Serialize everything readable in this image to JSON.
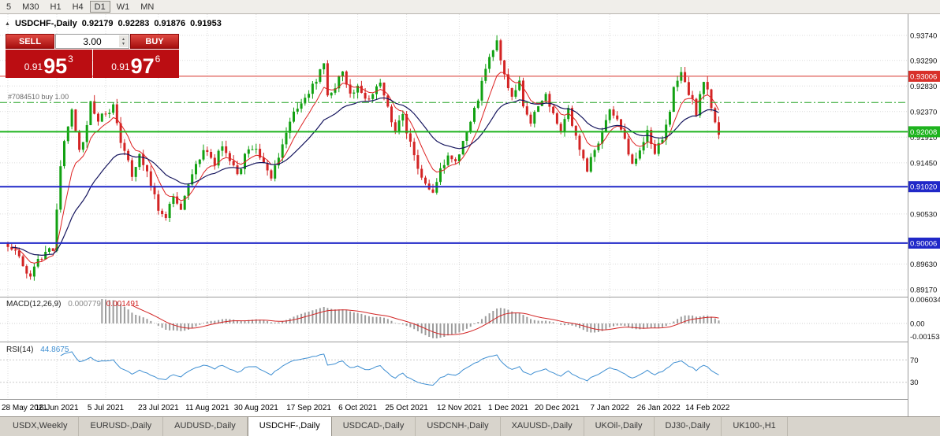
{
  "toolbar": {
    "timeframes": [
      "5",
      "M30",
      "H1",
      "H4",
      "D1",
      "W1",
      "MN"
    ],
    "active_timeframe": "D1"
  },
  "chart_header": {
    "collapse_icon": "▲",
    "symbol_title": "USDCHF-,Daily",
    "open": "0.92179",
    "high": "0.92283",
    "low": "0.91876",
    "close": "0.91953"
  },
  "one_click_trading": {
    "sell_label": "SELL",
    "buy_label": "BUY",
    "volume": "3.00",
    "spinner_up_icon": "▲",
    "spinner_down_icon": "▼",
    "sell_price_prefix": "0.91",
    "sell_price_big": "95",
    "sell_price_sup": "3",
    "buy_price_prefix": "0.91",
    "buy_price_big": "97",
    "buy_price_sup": "6",
    "panel_color": "#bb0d12"
  },
  "position_line": {
    "label": "#7084510 buy 1.00",
    "price": 0.92535,
    "color": "#1fa11f"
  },
  "price_axis": {
    "labels": [
      {
        "text": "0.93740",
        "price": 0.9374
      },
      {
        "text": "0.93290",
        "price": 0.9329
      },
      {
        "text": "0.92830",
        "price": 0.9283
      },
      {
        "text": "0.92370",
        "price": 0.9237
      },
      {
        "text": "0.91910",
        "price": 0.9191
      },
      {
        "text": "0.91450",
        "price": 0.9145
      },
      {
        "text": "0.90530",
        "price": 0.9053
      },
      {
        "text": "0.89630",
        "price": 0.8963
      },
      {
        "text": "0.89170",
        "price": 0.8917
      }
    ],
    "badges": [
      {
        "text": "0.93006",
        "price": 0.93006,
        "color": "#d8302a",
        "line_width": 1
      },
      {
        "text": "0.92008",
        "price": 0.92008,
        "color": "#1db31d",
        "line_width": 2
      },
      {
        "text": "0.91020",
        "price": 0.9102,
        "color": "#2028c8",
        "line_width": 2
      },
      {
        "text": "0.90006",
        "price": 0.90006,
        "color": "#2028c8",
        "line_width": 2
      }
    ]
  },
  "macd_panel": {
    "name": "MACD(12,26,9)",
    "value_main": "0.000779",
    "value_signal": "0.001491",
    "axis_top": "0.006034",
    "axis_zero": "0.00",
    "axis_bottom": "-0.001534",
    "histogram_color": "#9c9c9c",
    "signal_color": "#d22525"
  },
  "rsi_panel": {
    "name": "RSI(14)",
    "value": "44.8675",
    "line_color": "#3f8fd2",
    "levels": [
      70,
      30
    ]
  },
  "date_axis": {
    "labels": [
      "28 May 2021",
      "16 Jun 2021",
      "5 Jul 2021",
      "23 Jul 2021",
      "11 Aug 2021",
      "30 Aug 2021",
      "17 Sep 2021",
      "6 Oct 2021",
      "25 Oct 2021",
      "12 Nov 2021",
      "1 Dec 2021",
      "20 Dec 2021",
      "7 Jan 2022",
      "26 Jan 2022",
      "14 Feb 2022"
    ],
    "indices": [
      0,
      13,
      26,
      40,
      53,
      66,
      80,
      93,
      106,
      120,
      133,
      146,
      160,
      173,
      186
    ]
  },
  "tabs": {
    "items": [
      "USDX,Weekly",
      "EURUSD-,Daily",
      "AUDUSD-,Daily",
      "USDCHF-,Daily",
      "USDCAD-,Daily",
      "USDCNH-,Daily",
      "XAUUSD-,Daily",
      "UKOil-,Daily",
      "DJ30-,Daily",
      "UK100-,H1"
    ],
    "active": "USDCHF-,Daily"
  },
  "chart_data": {
    "type": "candlestick",
    "symbol": "USDCHF",
    "timeframe": "Daily",
    "visible_range": {
      "price_min": 0.8917,
      "price_max": 0.9398,
      "first_date": "28 May 2021",
      "last_date": "17 Feb 2022"
    },
    "candle_count": 190,
    "up_color": "#12a112",
    "down_color": "#d32424",
    "ma_fast": {
      "period": 8,
      "color": "#dd2222"
    },
    "ma_slow": {
      "period": 24,
      "color": "#16165e"
    },
    "last_candle": {
      "open": 0.92179,
      "high": 0.92283,
      "low": 0.91876,
      "close": 0.91953
    },
    "close_waypoints": [
      [
        0,
        0.8998
      ],
      [
        2,
        0.8988
      ],
      [
        4,
        0.896
      ],
      [
        6,
        0.8942
      ],
      [
        8,
        0.8968
      ],
      [
        10,
        0.8985
      ],
      [
        12,
        0.8992
      ],
      [
        13,
        0.9055
      ],
      [
        14,
        0.914
      ],
      [
        15,
        0.9185
      ],
      [
        17,
        0.9235
      ],
      [
        19,
        0.9165
      ],
      [
        21,
        0.921
      ],
      [
        22,
        0.925
      ],
      [
        24,
        0.9225
      ],
      [
        26,
        0.923
      ],
      [
        28,
        0.9245
      ],
      [
        30,
        0.9185
      ],
      [
        33,
        0.9125
      ],
      [
        35,
        0.916
      ],
      [
        38,
        0.9105
      ],
      [
        40,
        0.9065
      ],
      [
        42,
        0.9048
      ],
      [
        44,
        0.9085
      ],
      [
        46,
        0.9062
      ],
      [
        48,
        0.911
      ],
      [
        50,
        0.9148
      ],
      [
        53,
        0.917
      ],
      [
        55,
        0.9145
      ],
      [
        57,
        0.9178
      ],
      [
        59,
        0.9152
      ],
      [
        61,
        0.9122
      ],
      [
        63,
        0.9158
      ],
      [
        66,
        0.9175
      ],
      [
        68,
        0.9142
      ],
      [
        70,
        0.9122
      ],
      [
        72,
        0.9158
      ],
      [
        74,
        0.9198
      ],
      [
        76,
        0.9232
      ],
      [
        78,
        0.9255
      ],
      [
        80,
        0.927
      ],
      [
        82,
        0.9295
      ],
      [
        84,
        0.933
      ],
      [
        85,
        0.926
      ],
      [
        87,
        0.9285
      ],
      [
        89,
        0.931
      ],
      [
        91,
        0.9265
      ],
      [
        93,
        0.928
      ],
      [
        95,
        0.9255
      ],
      [
        97,
        0.927
      ],
      [
        99,
        0.9285
      ],
      [
        101,
        0.924
      ],
      [
        103,
        0.9205
      ],
      [
        105,
        0.9228
      ],
      [
        107,
        0.918
      ],
      [
        109,
        0.913
      ],
      [
        111,
        0.9105
      ],
      [
        113,
        0.9092
      ],
      [
        115,
        0.913
      ],
      [
        117,
        0.9158
      ],
      [
        119,
        0.9146
      ],
      [
        121,
        0.9182
      ],
      [
        123,
        0.9218
      ],
      [
        125,
        0.9262
      ],
      [
        127,
        0.931
      ],
      [
        129,
        0.9352
      ],
      [
        130,
        0.936
      ],
      [
        132,
        0.93
      ],
      [
        134,
        0.9262
      ],
      [
        136,
        0.929
      ],
      [
        137,
        0.924
      ],
      [
        139,
        0.9215
      ],
      [
        141,
        0.9252
      ],
      [
        143,
        0.9268
      ],
      [
        145,
        0.9232
      ],
      [
        147,
        0.9205
      ],
      [
        149,
        0.9238
      ],
      [
        150,
        0.9212
      ],
      [
        152,
        0.9172
      ],
      [
        154,
        0.9135
      ],
      [
        156,
        0.9165
      ],
      [
        158,
        0.9202
      ],
      [
        160,
        0.9238
      ],
      [
        162,
        0.9222
      ],
      [
        164,
        0.9182
      ],
      [
        166,
        0.9142
      ],
      [
        168,
        0.9172
      ],
      [
        170,
        0.9198
      ],
      [
        172,
        0.9162
      ],
      [
        174,
        0.9192
      ],
      [
        176,
        0.9242
      ],
      [
        177,
        0.928
      ],
      [
        179,
        0.9308
      ],
      [
        181,
        0.9272
      ],
      [
        183,
        0.9235
      ],
      [
        184,
        0.9262
      ],
      [
        185,
        0.929
      ],
      [
        186,
        0.9272
      ],
      [
        187,
        0.924
      ],
      [
        188,
        0.92179
      ],
      [
        189,
        0.91953
      ]
    ]
  }
}
